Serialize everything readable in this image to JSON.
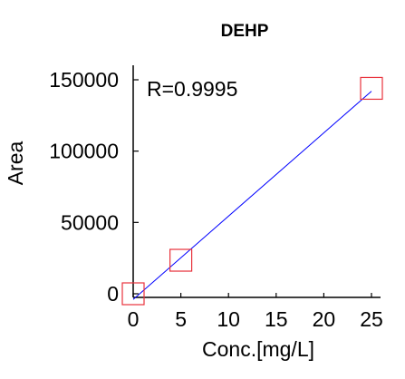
{
  "chart_data": {
    "type": "scatter",
    "title": "DEHP",
    "xlabel": "Conc.[mg/L]",
    "ylabel": "Area",
    "annotation": "R=0.9995",
    "xlim": [
      0,
      25
    ],
    "ylim": [
      0,
      150000
    ],
    "xticks": [
      0,
      5,
      10,
      15,
      20,
      25
    ],
    "yticks": [
      0,
      50000,
      100000,
      150000
    ],
    "xtick_labels": [
      "0",
      "5",
      "10",
      "15",
      "20",
      "25"
    ],
    "ytick_labels": [
      "0",
      "50000",
      "100000",
      "150000"
    ],
    "points": [
      {
        "x": 0,
        "y": 0
      },
      {
        "x": 5,
        "y": 23500
      },
      {
        "x": 25,
        "y": 144000
      }
    ],
    "fit_line": {
      "x": [
        0,
        25
      ],
      "y": [
        -4000,
        142000
      ]
    },
    "marker": "open-square",
    "grid": false,
    "colors": {
      "marker": "#e8323c",
      "fit_line": "#0000ff",
      "axis": "#000000",
      "text": "#000000"
    }
  }
}
